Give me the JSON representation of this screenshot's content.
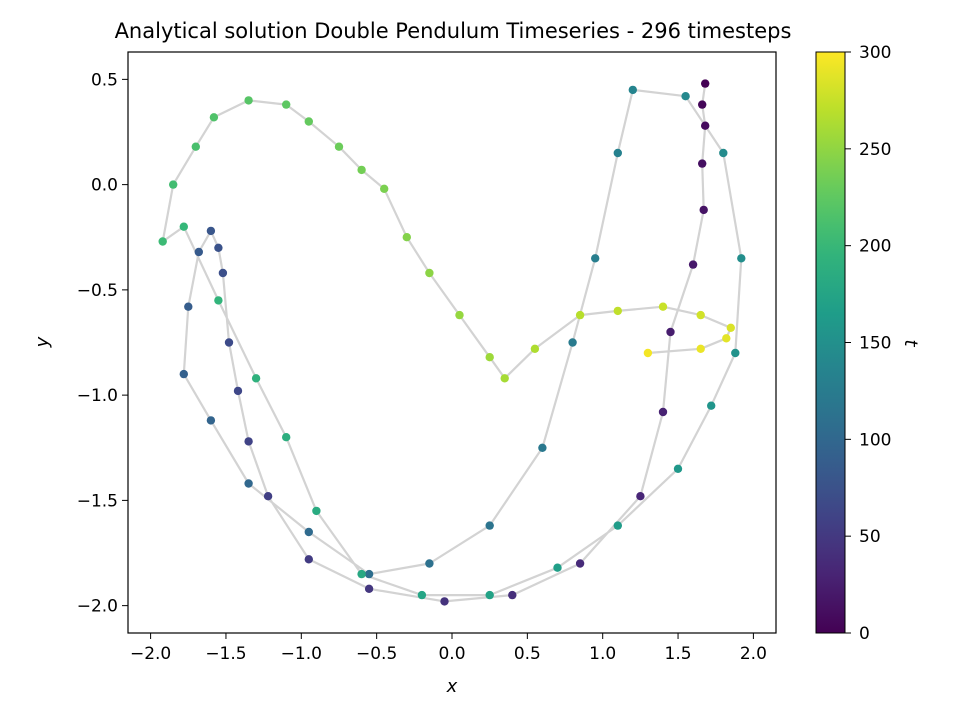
{
  "chart_data": {
    "type": "scatter",
    "title": "Analytical solution Double Pendulum Timeseries - 296 timesteps",
    "xlabel": "x",
    "ylabel": "y",
    "xlim": [
      -2.15,
      2.15
    ],
    "ylim": [
      -2.13,
      0.63
    ],
    "x_ticks": [
      -2.0,
      -1.5,
      -1.0,
      -0.5,
      0.0,
      0.5,
      1.0,
      1.5,
      2.0
    ],
    "x_tick_labels": [
      "−2.0",
      "−1.5",
      "−1.0",
      "−0.5",
      "0.0",
      "0.5",
      "1.0",
      "1.5",
      "2.0"
    ],
    "y_ticks": [
      0.5,
      0.0,
      -0.5,
      -1.0,
      -1.5,
      -2.0
    ],
    "y_tick_labels": [
      "0.5",
      "0.0",
      "−0.5",
      "−1.0",
      "−1.5",
      "−2.0"
    ],
    "grid": false,
    "colorbar": {
      "label": "t",
      "range": [
        0,
        300
      ],
      "ticks": [
        0,
        50,
        100,
        150,
        200,
        250,
        300
      ],
      "tick_labels": [
        "0",
        "50",
        "100",
        "150",
        "200",
        "250",
        "300"
      ],
      "colormap": "viridis"
    },
    "line_color": "#d3d3d3",
    "color_by": "t",
    "points": [
      {
        "x": 1.68,
        "y": 0.48,
        "t": 0
      },
      {
        "x": 1.66,
        "y": 0.38,
        "t": 4
      },
      {
        "x": 1.68,
        "y": 0.28,
        "t": 8
      },
      {
        "x": 1.66,
        "y": 0.1,
        "t": 12
      },
      {
        "x": 1.67,
        "y": -0.12,
        "t": 16
      },
      {
        "x": 1.6,
        "y": -0.38,
        "t": 20
      },
      {
        "x": 1.45,
        "y": -0.7,
        "t": 24
      },
      {
        "x": 1.4,
        "y": -1.08,
        "t": 28
      },
      {
        "x": 1.25,
        "y": -1.48,
        "t": 32
      },
      {
        "x": 0.85,
        "y": -1.8,
        "t": 36
      },
      {
        "x": 0.4,
        "y": -1.95,
        "t": 40
      },
      {
        "x": -0.05,
        "y": -1.98,
        "t": 44
      },
      {
        "x": -0.55,
        "y": -1.92,
        "t": 48
      },
      {
        "x": -0.95,
        "y": -1.78,
        "t": 52
      },
      {
        "x": -1.22,
        "y": -1.48,
        "t": 56
      },
      {
        "x": -1.35,
        "y": -1.22,
        "t": 60
      },
      {
        "x": -1.42,
        "y": -0.98,
        "t": 64
      },
      {
        "x": -1.48,
        "y": -0.75,
        "t": 68
      },
      {
        "x": -1.52,
        "y": -0.42,
        "t": 72
      },
      {
        "x": -1.55,
        "y": -0.3,
        "t": 76
      },
      {
        "x": -1.6,
        "y": -0.22,
        "t": 80
      },
      {
        "x": -1.68,
        "y": -0.32,
        "t": 84
      },
      {
        "x": -1.75,
        "y": -0.58,
        "t": 88
      },
      {
        "x": -1.78,
        "y": -0.9,
        "t": 92
      },
      {
        "x": -1.6,
        "y": -1.12,
        "t": 96
      },
      {
        "x": -1.35,
        "y": -1.42,
        "t": 100
      },
      {
        "x": -0.95,
        "y": -1.65,
        "t": 104
      },
      {
        "x": -0.55,
        "y": -1.85,
        "t": 108
      },
      {
        "x": -0.15,
        "y": -1.8,
        "t": 112
      },
      {
        "x": 0.25,
        "y": -1.62,
        "t": 116
      },
      {
        "x": 0.6,
        "y": -1.25,
        "t": 120
      },
      {
        "x": 0.8,
        "y": -0.75,
        "t": 124
      },
      {
        "x": 0.95,
        "y": -0.35,
        "t": 128
      },
      {
        "x": 1.1,
        "y": 0.15,
        "t": 132
      },
      {
        "x": 1.2,
        "y": 0.45,
        "t": 136
      },
      {
        "x": 1.55,
        "y": 0.42,
        "t": 140
      },
      {
        "x": 1.8,
        "y": 0.15,
        "t": 144
      },
      {
        "x": 1.92,
        "y": -0.35,
        "t": 148
      },
      {
        "x": 1.88,
        "y": -0.8,
        "t": 152
      },
      {
        "x": 1.72,
        "y": -1.05,
        "t": 156
      },
      {
        "x": 1.5,
        "y": -1.35,
        "t": 160
      },
      {
        "x": 1.1,
        "y": -1.62,
        "t": 164
      },
      {
        "x": 0.7,
        "y": -1.82,
        "t": 168
      },
      {
        "x": 0.25,
        "y": -1.95,
        "t": 172
      },
      {
        "x": -0.2,
        "y": -1.95,
        "t": 176
      },
      {
        "x": -0.6,
        "y": -1.85,
        "t": 180
      },
      {
        "x": -0.9,
        "y": -1.55,
        "t": 184
      },
      {
        "x": -1.1,
        "y": -1.2,
        "t": 188
      },
      {
        "x": -1.3,
        "y": -0.92,
        "t": 192
      },
      {
        "x": -1.55,
        "y": -0.55,
        "t": 196
      },
      {
        "x": -1.78,
        "y": -0.2,
        "t": 200
      },
      {
        "x": -1.92,
        "y": -0.27,
        "t": 204
      },
      {
        "x": -1.85,
        "y": 0.0,
        "t": 208
      },
      {
        "x": -1.7,
        "y": 0.18,
        "t": 212
      },
      {
        "x": -1.58,
        "y": 0.32,
        "t": 216
      },
      {
        "x": -1.35,
        "y": 0.4,
        "t": 220
      },
      {
        "x": -1.1,
        "y": 0.38,
        "t": 224
      },
      {
        "x": -0.95,
        "y": 0.3,
        "t": 228
      },
      {
        "x": -0.75,
        "y": 0.18,
        "t": 232
      },
      {
        "x": -0.6,
        "y": 0.07,
        "t": 236
      },
      {
        "x": -0.45,
        "y": -0.02,
        "t": 240
      },
      {
        "x": -0.3,
        "y": -0.25,
        "t": 244
      },
      {
        "x": -0.15,
        "y": -0.42,
        "t": 248
      },
      {
        "x": 0.05,
        "y": -0.62,
        "t": 252
      },
      {
        "x": 0.25,
        "y": -0.82,
        "t": 256
      },
      {
        "x": 0.35,
        "y": -0.92,
        "t": 260
      },
      {
        "x": 0.55,
        "y": -0.78,
        "t": 264
      },
      {
        "x": 0.85,
        "y": -0.62,
        "t": 268
      },
      {
        "x": 1.1,
        "y": -0.6,
        "t": 272
      },
      {
        "x": 1.4,
        "y": -0.58,
        "t": 276
      },
      {
        "x": 1.65,
        "y": -0.62,
        "t": 280
      },
      {
        "x": 1.85,
        "y": -0.68,
        "t": 284
      },
      {
        "x": 1.82,
        "y": -0.73,
        "t": 288
      },
      {
        "x": 1.65,
        "y": -0.78,
        "t": 292
      },
      {
        "x": 1.3,
        "y": -0.8,
        "t": 296
      }
    ]
  }
}
